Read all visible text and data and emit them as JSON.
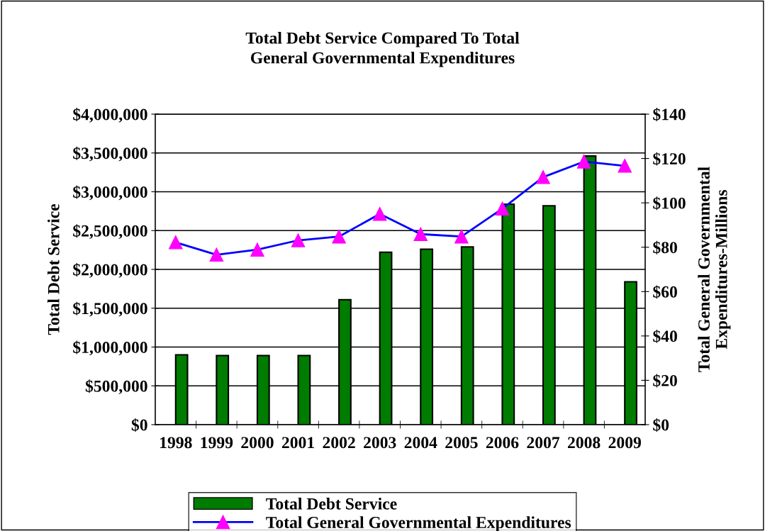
{
  "chart_data": {
    "type": "bar",
    "title": "Total Debt Service Compared To Total\nGeneral Governmental Expenditures",
    "ylabel": "Total Debt Service",
    "y2label": "Total General Governmental\nExpenditures-Millions",
    "categories": [
      "1998",
      "1999",
      "2000",
      "2001",
      "2002",
      "2003",
      "2004",
      "2005",
      "2006",
      "2007",
      "2008",
      "2009"
    ],
    "series": [
      {
        "name": "Total Debt Service",
        "color": "#007c00",
        "values": [
          900000,
          890000,
          890000,
          890000,
          1610000,
          2220000,
          2260000,
          2290000,
          2840000,
          2820000,
          3460000,
          1840000
        ]
      },
      {
        "name": "Total General Governmental Expenditures",
        "type": "line",
        "axis": "y2",
        "color": "#0000ff",
        "marker": "triangle",
        "values": [
          82.2,
          76.6,
          78.9,
          83.1,
          84.8,
          95.0,
          85.9,
          84.8,
          97.4,
          111.6,
          118.6,
          116.7
        ]
      }
    ],
    "ylim": [
      0,
      4000000
    ],
    "yticks": [
      {
        "value": 0,
        "label": "$0"
      },
      {
        "value": 500000,
        "label": "$500,000"
      },
      {
        "value": 1000000,
        "label": "$1,000,000"
      },
      {
        "value": 1500000,
        "label": "$1,500,000"
      },
      {
        "value": 2000000,
        "label": "$2,000,000"
      },
      {
        "value": 2500000,
        "label": "$2,500,000"
      },
      {
        "value": 3000000,
        "label": "$3,000,000"
      },
      {
        "value": 3500000,
        "label": "$3,500,000"
      },
      {
        "value": 4000000,
        "label": "$4,000,000"
      }
    ],
    "y2lim": [
      0,
      140
    ],
    "y2ticks": [
      {
        "value": 0,
        "label": "$0"
      },
      {
        "value": 20,
        "label": "$20"
      },
      {
        "value": 40,
        "label": "$40"
      },
      {
        "value": 60,
        "label": "$60"
      },
      {
        "value": 80,
        "label": "$80"
      },
      {
        "value": 100,
        "label": "$100"
      },
      {
        "value": 120,
        "label": "$120"
      },
      {
        "value": 140,
        "label": "$140"
      }
    ],
    "grid": "y",
    "legend": "bottom"
  }
}
